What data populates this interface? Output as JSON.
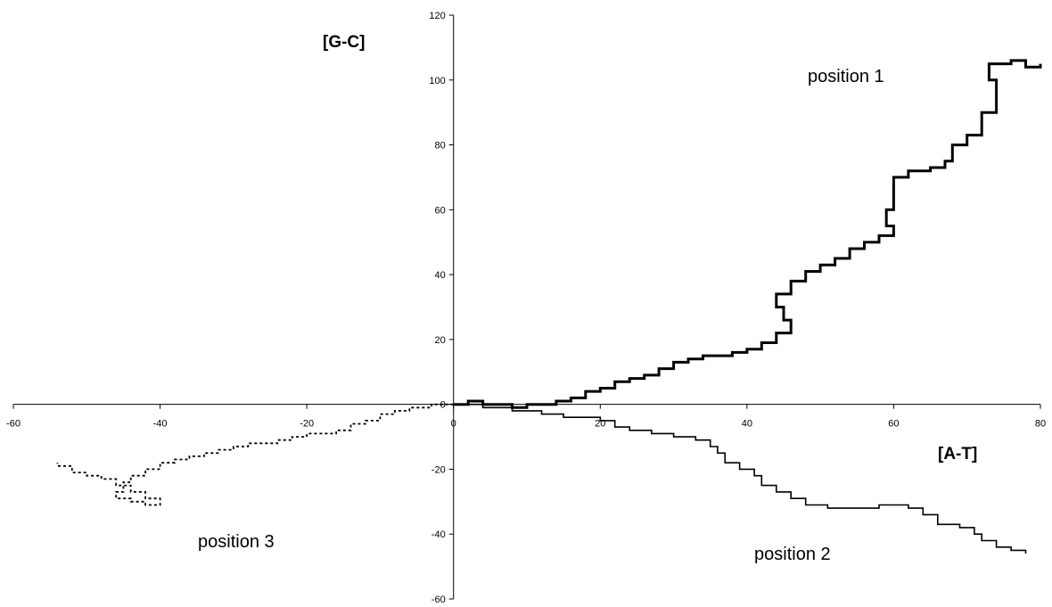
{
  "chart_data": {
    "type": "line",
    "title": "",
    "xlabel": "[A-T]",
    "ylabel": "[G-C]",
    "xlim": [
      -60,
      80
    ],
    "ylim": [
      -60,
      120
    ],
    "x_ticks": [
      -60,
      -40,
      -20,
      0,
      20,
      40,
      60,
      80
    ],
    "y_ticks": [
      -60,
      -40,
      -20,
      0,
      20,
      40,
      60,
      80,
      100,
      120
    ],
    "grid": false,
    "legend": "none",
    "series": [
      {
        "name": "position 1",
        "style": "thick-solid",
        "color": "#000000",
        "points": [
          [
            0,
            0
          ],
          [
            2,
            1
          ],
          [
            4,
            0
          ],
          [
            6,
            0
          ],
          [
            8,
            -1
          ],
          [
            10,
            0
          ],
          [
            12,
            0
          ],
          [
            14,
            1
          ],
          [
            16,
            2
          ],
          [
            18,
            4
          ],
          [
            20,
            5
          ],
          [
            22,
            7
          ],
          [
            24,
            8
          ],
          [
            26,
            9
          ],
          [
            28,
            11
          ],
          [
            30,
            13
          ],
          [
            32,
            14
          ],
          [
            34,
            15
          ],
          [
            36,
            15
          ],
          [
            38,
            16
          ],
          [
            40,
            17
          ],
          [
            42,
            19
          ],
          [
            44,
            22
          ],
          [
            46,
            26
          ],
          [
            45,
            30
          ],
          [
            44,
            34
          ],
          [
            46,
            38
          ],
          [
            48,
            41
          ],
          [
            50,
            43
          ],
          [
            52,
            45
          ],
          [
            54,
            48
          ],
          [
            56,
            50
          ],
          [
            58,
            52
          ],
          [
            60,
            55
          ],
          [
            59,
            60
          ],
          [
            60,
            65
          ],
          [
            60,
            70
          ],
          [
            62,
            72
          ],
          [
            65,
            73
          ],
          [
            67,
            75
          ],
          [
            68,
            80
          ],
          [
            70,
            83
          ],
          [
            72,
            85
          ],
          [
            72,
            90
          ],
          [
            74,
            94
          ],
          [
            74,
            100
          ],
          [
            73,
            105
          ],
          [
            76,
            106
          ],
          [
            78,
            104
          ],
          [
            80,
            105
          ]
        ]
      },
      {
        "name": "position 2",
        "style": "thin-solid",
        "color": "#000000",
        "points": [
          [
            0,
            0
          ],
          [
            4,
            -1
          ],
          [
            8,
            -2
          ],
          [
            12,
            -3
          ],
          [
            15,
            -4
          ],
          [
            18,
            -4
          ],
          [
            20,
            -5
          ],
          [
            22,
            -7
          ],
          [
            24,
            -8
          ],
          [
            27,
            -9
          ],
          [
            30,
            -10
          ],
          [
            33,
            -11
          ],
          [
            35,
            -13
          ],
          [
            36,
            -15
          ],
          [
            37,
            -18
          ],
          [
            39,
            -20
          ],
          [
            41,
            -22
          ],
          [
            42,
            -25
          ],
          [
            44,
            -27
          ],
          [
            46,
            -29
          ],
          [
            48,
            -31
          ],
          [
            51,
            -32
          ],
          [
            55,
            -32
          ],
          [
            58,
            -31
          ],
          [
            62,
            -32
          ],
          [
            64,
            -34
          ],
          [
            66,
            -37
          ],
          [
            69,
            -38
          ],
          [
            71,
            -40
          ],
          [
            72,
            -42
          ],
          [
            74,
            -44
          ],
          [
            76,
            -45
          ],
          [
            78,
            -46
          ]
        ]
      },
      {
        "name": "position 3",
        "style": "dotted",
        "color": "#000000",
        "points": [
          [
            0,
            0
          ],
          [
            -3,
            -1
          ],
          [
            -6,
            -2
          ],
          [
            -8,
            -3
          ],
          [
            -10,
            -5
          ],
          [
            -12,
            -6
          ],
          [
            -14,
            -8
          ],
          [
            -16,
            -9
          ],
          [
            -18,
            -9
          ],
          [
            -20,
            -10
          ],
          [
            -22,
            -11
          ],
          [
            -24,
            -12
          ],
          [
            -26,
            -12
          ],
          [
            -28,
            -13
          ],
          [
            -30,
            -14
          ],
          [
            -32,
            -15
          ],
          [
            -34,
            -16
          ],
          [
            -36,
            -17
          ],
          [
            -38,
            -18
          ],
          [
            -40,
            -20
          ],
          [
            -42,
            -22
          ],
          [
            -44,
            -24
          ],
          [
            -45,
            -27
          ],
          [
            -46,
            -29
          ],
          [
            -44,
            -30
          ],
          [
            -42,
            -31
          ],
          [
            -40,
            -29
          ],
          [
            -42,
            -27
          ],
          [
            -44,
            -25
          ],
          [
            -46,
            -23
          ],
          [
            -48,
            -22
          ],
          [
            -50,
            -21
          ],
          [
            -52,
            -19
          ],
          [
            -54,
            -18
          ]
        ]
      }
    ]
  }
}
